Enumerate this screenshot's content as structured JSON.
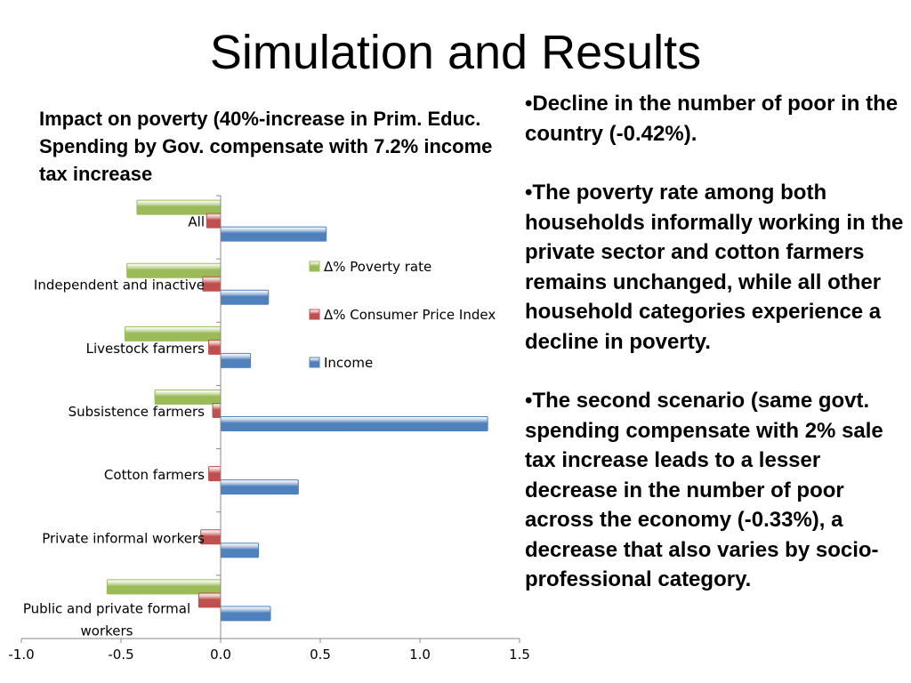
{
  "slide": {
    "title": "Simulation and Results"
  },
  "bullets": [
    {
      "marker": "•",
      "text": "Decline in the number of poor in the country (-0.42%)."
    },
    {
      "marker": "•",
      "text": "The poverty rate among both households informally working in the private sector and cotton farmers remains unchanged, while all other household categories experience a decline in poverty."
    },
    {
      "marker": "•",
      "text": "The second scenario (same govt. spending compensate with 2% sale tax increase  leads to a lesser decrease in the number of poor across the economy (-0.33%), a decrease that also varies by socio-professional category."
    }
  ],
  "chart_data": {
    "type": "bar",
    "orientation": "horizontal",
    "title": "Impact on poverty (40%-increase in Prim. Educ. Spending by Gov. compensate with 7.2% income tax increase",
    "categories": [
      "All",
      "Independent and inactive",
      "Livestock farmers",
      "Subsistence farmers",
      "Cotton farmers",
      "Private informal workers",
      "Public and private formal workers"
    ],
    "series": [
      {
        "name": "Δ% Poverty rate",
        "color": "#9bbb59",
        "values": [
          -0.42,
          -0.47,
          -0.48,
          -0.33,
          0.0,
          0.0,
          -0.57
        ]
      },
      {
        "name": "Δ% Consumer Price Index",
        "color": "#c0504d",
        "values": [
          -0.07,
          -0.09,
          -0.06,
          -0.04,
          -0.06,
          -0.1,
          -0.11
        ]
      },
      {
        "name": "Income",
        "color": "#4f81bd",
        "values": [
          0.53,
          0.24,
          0.15,
          1.34,
          0.39,
          0.19,
          0.25
        ]
      }
    ],
    "x_ticks": [
      "-1.0",
      "-0.5",
      "0.0",
      "0.5",
      "1.0",
      "1.5"
    ],
    "xlim": [
      -1.0,
      1.5
    ],
    "legend_position": "right",
    "grid": false
  }
}
